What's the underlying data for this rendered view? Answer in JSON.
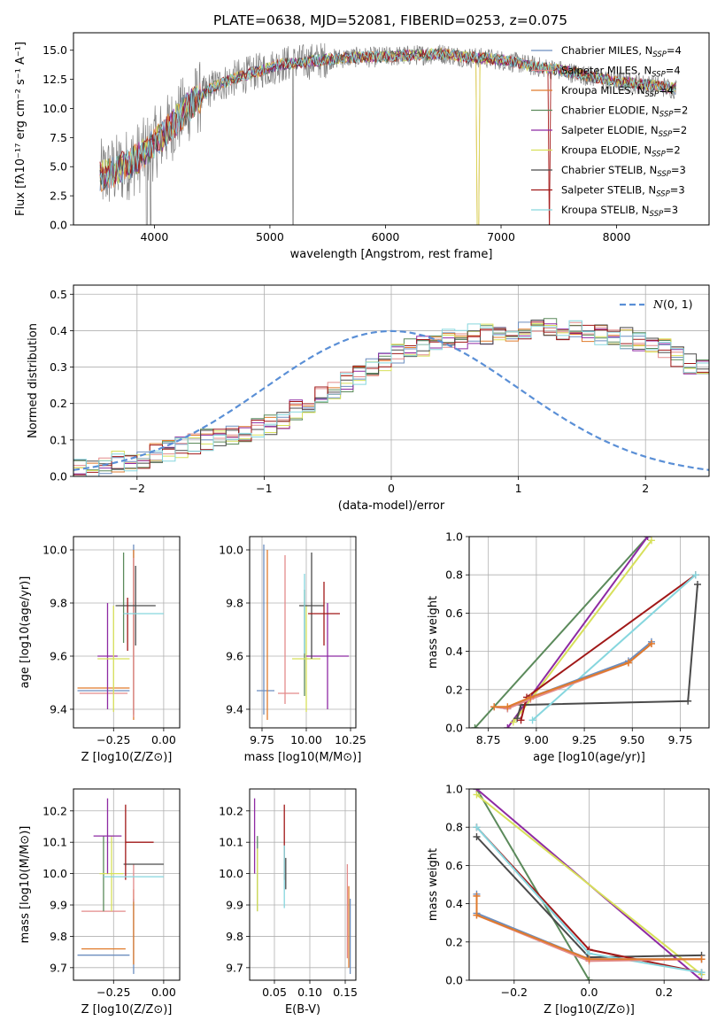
{
  "figure_title": "PLATE=0638, MJD=52081, FIBERID=0253, z=0.075",
  "colors": {
    "chabrier_miles": "#6c8ebf",
    "salpeter_miles": "#e38b8b",
    "kroupa_miles": "#e07b2c",
    "chabrier_elodie": "#5b8a5b",
    "salpeter_elodie": "#8e2aa3",
    "kroupa_elodie": "#d7e05a",
    "chabrier_stelib": "#4a4a4a",
    "salpeter_stelib": "#a01818",
    "kroupa_stelib": "#86d6de",
    "gaussian": "#5a8fd6",
    "grid": "#b0b0b0"
  },
  "chart_data": [
    {
      "type": "line",
      "id": "spectrum",
      "title": "PLATE=0638, MJD=52081, FIBERID=0253, z=0.075",
      "xlabel": "wavelength [Angstrom, rest frame]",
      "ylabel": "Flux [fλ10⁻¹⁷ erg cm⁻² s⁻¹ A⁻¹]",
      "xlim": [
        3300,
        8800
      ],
      "ylim": [
        0,
        16.5
      ],
      "xticks": [
        "4000",
        "5000",
        "6000",
        "7000",
        "8000"
      ],
      "yticks": [
        "0.0",
        "2.5",
        "5.0",
        "7.5",
        "10.0",
        "12.5",
        "15.0"
      ],
      "grid": false,
      "legend_position": "upper-right",
      "continuum_x": [
        3530,
        3700,
        3900,
        4100,
        4300,
        4500,
        4700,
        4900,
        5100,
        5300,
        5500,
        5700,
        5900,
        6100,
        6300,
        6500,
        6700,
        6900,
        7100,
        7300,
        7500,
        7700,
        7900,
        8100,
        8300,
        8500
      ],
      "continuum_y": [
        4.2,
        4.8,
        6.0,
        8.0,
        10.2,
        11.8,
        12.6,
        13.2,
        13.8,
        14.0,
        14.2,
        14.4,
        14.4,
        14.5,
        14.6,
        14.7,
        14.4,
        14.3,
        14.0,
        13.6,
        13.3,
        12.9,
        12.5,
        12.2,
        12.0,
        11.7
      ],
      "series": [
        {
          "name": "Chabrier MILES, N_SSP=4",
          "legend_label": "Chabrier MILES, N",
          "legend_sub": "SSP",
          "legend_val": "=4",
          "color_key": "chabrier_miles"
        },
        {
          "name": "Salpeter MILES, N_SSP=4",
          "legend_label": "Salpeter MILES, N",
          "legend_sub": "SSP",
          "legend_val": "=4",
          "color_key": "salpeter_miles"
        },
        {
          "name": "Kroupa MILES, N_SSP=4",
          "legend_label": "Kroupa MILES, N",
          "legend_sub": "SSP",
          "legend_val": "=4",
          "color_key": "kroupa_miles"
        },
        {
          "name": "Chabrier ELODIE, N_SSP=2",
          "legend_label": "Chabrier ELODIE, N",
          "legend_sub": "SSP",
          "legend_val": "=2",
          "color_key": "chabrier_elodie"
        },
        {
          "name": "Salpeter ELODIE, N_SSP=2",
          "legend_label": "Salpeter ELODIE, N",
          "legend_sub": "SSP",
          "legend_val": "=2",
          "color_key": "salpeter_elodie"
        },
        {
          "name": "Kroupa ELODIE, N_SSP=2",
          "legend_label": "Kroupa ELODIE, N",
          "legend_sub": "SSP",
          "legend_val": "=2",
          "color_key": "kroupa_elodie"
        },
        {
          "name": "Chabrier STELIB, N_SSP=3",
          "legend_label": "Chabrier STELIB, N",
          "legend_sub": "SSP",
          "legend_val": "=3",
          "color_key": "chabrier_stelib"
        },
        {
          "name": "Salpeter STELIB, N_SSP=3",
          "legend_label": "Salpeter STELIB, N",
          "legend_sub": "SSP",
          "legend_val": "=3",
          "color_key": "salpeter_stelib"
        },
        {
          "name": "Kroupa STELIB, N_SSP=3",
          "legend_label": "Kroupa STELIB, N",
          "legend_sub": "SSP",
          "legend_val": "=3",
          "color_key": "kroupa_stelib"
        }
      ]
    },
    {
      "type": "histogram",
      "id": "residuals",
      "xlabel": "(data-model)/error",
      "ylabel": "Normed distribution",
      "xlim": [
        -2.5,
        2.5
      ],
      "ylim": [
        0,
        0.525
      ],
      "xticks": [
        "−2",
        "−1",
        "0",
        "1",
        "2"
      ],
      "yticks": [
        "0.0",
        "0.1",
        "0.2",
        "0.3",
        "0.4",
        "0.5"
      ],
      "grid": true,
      "legend_position": "upper-right",
      "gaussian_label": "N(0,1)",
      "gaussian_label_text": "(0, 1)",
      "bin_start": -2.5,
      "bin_width": 0.1,
      "bin_values": [
        0.02,
        0.02,
        0.03,
        0.04,
        0.04,
        0.05,
        0.06,
        0.07,
        0.08,
        0.09,
        0.1,
        0.1,
        0.11,
        0.12,
        0.13,
        0.14,
        0.16,
        0.18,
        0.2,
        0.22,
        0.24,
        0.26,
        0.28,
        0.3,
        0.32,
        0.34,
        0.35,
        0.36,
        0.37,
        0.38,
        0.38,
        0.39,
        0.39,
        0.4,
        0.4,
        0.4,
        0.4,
        0.41,
        0.4,
        0.4,
        0.4,
        0.39,
        0.38,
        0.38,
        0.37,
        0.36,
        0.35,
        0.33,
        0.31,
        0.29,
        0.27,
        0.25,
        0.23,
        0.21,
        0.19,
        0.17,
        0.15,
        0.13,
        0.12,
        0.1,
        0.09,
        0.08,
        0.07,
        0.06,
        0.05,
        0.04,
        0.04,
        0.03,
        0.03,
        0.02,
        0.02
      ]
    },
    {
      "type": "scatter",
      "id": "z_vs_age",
      "xlabel": "Z [log10(Z/Z⊙)]",
      "ylabel": "age  [log10(age/yr)]",
      "xlim": [
        -0.45,
        0.08
      ],
      "ylim": [
        9.33,
        10.05
      ],
      "xticks": [
        "−0.25",
        "0.00"
      ],
      "yticks": [
        "9.4",
        "9.6",
        "9.8",
        "10.0"
      ],
      "grid": true,
      "points": [
        {
          "series": 0,
          "x": -0.3,
          "xerr": 0.13,
          "y": 9.47,
          "yerr": 0.0
        },
        {
          "series": 1,
          "x": -0.3,
          "xerr": 0.12,
          "y": 9.46,
          "yerr": 0.0
        },
        {
          "series": 2,
          "x": -0.3,
          "xerr": 0.13,
          "y": 9.48,
          "yerr": 0.0
        },
        {
          "series": 0,
          "x": -0.15,
          "xerr": 0.0,
          "y": 9.7,
          "yerr": 0.32
        },
        {
          "series": 2,
          "x": -0.15,
          "xerr": 0.0,
          "y": 9.68,
          "yerr": 0.32
        },
        {
          "series": 1,
          "x": -0.15,
          "xerr": 0.0,
          "y": 9.67,
          "yerr": 0.3
        },
        {
          "series": 3,
          "x": -0.2,
          "xerr": 0.0,
          "y": 9.82,
          "yerr": 0.17
        },
        {
          "series": 4,
          "x": -0.28,
          "xerr": 0.05,
          "y": 9.6,
          "yerr": 0.2
        },
        {
          "series": 5,
          "x": -0.25,
          "xerr": 0.08,
          "y": 9.59,
          "yerr": 0.2
        },
        {
          "series": 6,
          "x": -0.14,
          "xerr": 0.1,
          "y": 9.79,
          "yerr": 0.15
        },
        {
          "series": 7,
          "x": -0.18,
          "xerr": 0.0,
          "y": 9.72,
          "yerr": 0.1
        },
        {
          "series": 8,
          "x": -0.1,
          "xerr": 0.1,
          "y": 9.76,
          "yerr": 0.0
        }
      ]
    },
    {
      "type": "scatter",
      "id": "mass_vs_age",
      "xlabel": "mass [log10(M/M⊙)]",
      "ylabel": "",
      "xlim": [
        9.68,
        10.28
      ],
      "ylim": [
        9.33,
        10.05
      ],
      "xticks": [
        "9.75",
        "10.00",
        "10.25"
      ],
      "yticks": [
        "9.4",
        "9.6",
        "9.8",
        "10.0"
      ],
      "grid": true,
      "points": [
        {
          "series": 0,
          "x": 9.77,
          "xerr": 0.05,
          "y": 9.47,
          "yerr": 0.0
        },
        {
          "series": 0,
          "x": 9.76,
          "xerr": 0.0,
          "y": 9.7,
          "yerr": 0.32
        },
        {
          "series": 2,
          "x": 9.78,
          "xerr": 0.0,
          "y": 9.68,
          "yerr": 0.32
        },
        {
          "series": 1,
          "x": 9.88,
          "xerr": 0.0,
          "y": 9.7,
          "yerr": 0.28
        },
        {
          "series": 1,
          "x": 9.9,
          "xerr": 0.06,
          "y": 9.46,
          "yerr": 0.0
        },
        {
          "series": 3,
          "x": 9.99,
          "xerr": 0.0,
          "y": 9.65,
          "yerr": 0.2
        },
        {
          "series": 5,
          "x": 10.0,
          "xerr": 0.08,
          "y": 9.59,
          "yerr": 0.2
        },
        {
          "series": 4,
          "x": 10.12,
          "xerr": 0.12,
          "y": 9.6,
          "yerr": 0.2
        },
        {
          "series": 6,
          "x": 10.03,
          "xerr": 0.07,
          "y": 9.79,
          "yerr": 0.2
        },
        {
          "series": 7,
          "x": 10.1,
          "xerr": 0.09,
          "y": 9.76,
          "yerr": 0.12
        },
        {
          "series": 8,
          "x": 9.99,
          "xerr": 0.0,
          "y": 9.76,
          "yerr": 0.15
        }
      ]
    },
    {
      "type": "line",
      "id": "age_vs_massweight",
      "xlabel": "age  [log10(age/yr)]",
      "ylabel": "mass weight",
      "xlim": [
        8.65,
        9.9
      ],
      "ylim": [
        0,
        1
      ],
      "xticks": [
        "8.75",
        "9.00",
        "9.25",
        "9.50",
        "9.75"
      ],
      "yticks": [
        "0.0",
        "0.2",
        "0.4",
        "0.6",
        "0.8",
        "1.0"
      ],
      "grid": true,
      "series": [
        {
          "series": 3,
          "x": [
            8.68,
            9.58
          ],
          "y": [
            0.0,
            1.0
          ]
        },
        {
          "series": 4,
          "x": [
            8.85,
            9.58
          ],
          "y": [
            0.0,
            1.0
          ]
        },
        {
          "series": 5,
          "x": [
            8.88,
            9.6
          ],
          "y": [
            0.03,
            0.98
          ]
        },
        {
          "series": 6,
          "x": [
            8.9,
            8.92,
            9.79,
            9.84
          ],
          "y": [
            0.05,
            0.12,
            0.14,
            0.75
          ]
        },
        {
          "series": 7,
          "x": [
            8.92,
            8.95,
            9.83
          ],
          "y": [
            0.04,
            0.16,
            0.8
          ]
        },
        {
          "series": 8,
          "x": [
            8.98,
            9.83
          ],
          "y": [
            0.04,
            0.8
          ]
        },
        {
          "series": 0,
          "x": [
            8.78,
            8.85,
            8.97,
            9.48,
            9.6
          ],
          "y": [
            0.11,
            0.1,
            0.16,
            0.35,
            0.45
          ]
        },
        {
          "series": 1,
          "x": [
            8.78,
            8.85,
            8.97,
            9.48,
            9.6
          ],
          "y": [
            0.11,
            0.1,
            0.15,
            0.34,
            0.44
          ]
        },
        {
          "series": 2,
          "x": [
            8.78,
            8.85,
            8.97,
            9.48,
            9.6
          ],
          "y": [
            0.11,
            0.11,
            0.16,
            0.34,
            0.44
          ]
        }
      ]
    },
    {
      "type": "scatter",
      "id": "z_vs_mass",
      "xlabel": "Z [log10(Z/Z⊙)]",
      "ylabel": "mass [log10(M/M⊙)]",
      "xlim": [
        -0.45,
        0.08
      ],
      "ylim": [
        9.66,
        10.27
      ],
      "xticks": [
        "−0.25",
        "0.00"
      ],
      "yticks": [
        "9.7",
        "9.8",
        "9.9",
        "10.0",
        "10.1",
        "10.2"
      ],
      "grid": true,
      "points": [
        {
          "series": 0,
          "x": -0.3,
          "xerr": 0.13,
          "y": 9.74,
          "yerr": 0.0
        },
        {
          "series": 2,
          "x": -0.3,
          "xerr": 0.11,
          "y": 9.76,
          "yerr": 0.0
        },
        {
          "series": 1,
          "x": -0.3,
          "xerr": 0.11,
          "y": 9.88,
          "yerr": 0.0
        },
        {
          "series": 0,
          "x": -0.15,
          "xerr": 0.0,
          "y": 9.8,
          "yerr": 0.12
        },
        {
          "series": 2,
          "x": -0.15,
          "xerr": 0.0,
          "y": 9.83,
          "yerr": 0.12
        },
        {
          "series": 1,
          "x": -0.15,
          "xerr": 0.0,
          "y": 9.97,
          "yerr": 0.06
        },
        {
          "series": 3,
          "x": -0.3,
          "xerr": 0.0,
          "y": 10.0,
          "yerr": 0.12
        },
        {
          "series": 5,
          "x": -0.26,
          "xerr": 0.06,
          "y": 10.0,
          "yerr": 0.12
        },
        {
          "series": 4,
          "x": -0.28,
          "xerr": 0.07,
          "y": 10.12,
          "yerr": 0.12
        },
        {
          "series": 6,
          "x": -0.1,
          "xerr": 0.1,
          "y": 10.03,
          "yerr": 0.0
        },
        {
          "series": 7,
          "x": -0.19,
          "xerr": 0.0,
          "y": 10.1,
          "yerr": 0.12
        },
        {
          "series": 7,
          "x": -0.12,
          "xerr": 0.07,
          "y": 10.1,
          "yerr": 0.0
        },
        {
          "series": 8,
          "x": -0.15,
          "xerr": 0.15,
          "y": 9.99,
          "yerr": 0.0
        }
      ]
    },
    {
      "type": "scatter",
      "id": "ebv_vs_mass",
      "xlabel": "E(B-V)",
      "ylabel": "",
      "xlim": [
        0.015,
        0.165
      ],
      "ylim": [
        9.66,
        10.27
      ],
      "xticks": [
        "0.05",
        "0.10",
        "0.15"
      ],
      "yticks": [
        "9.7",
        "9.8",
        "9.9",
        "10.0",
        "10.1",
        "10.2"
      ],
      "grid": true,
      "points": [
        {
          "series": 4,
          "x": 0.022,
          "xerr": 0.0,
          "y": 10.12,
          "yerr": 0.12
        },
        {
          "series": 3,
          "x": 0.026,
          "xerr": 0.0,
          "y": 10.0,
          "yerr": 0.12
        },
        {
          "series": 5,
          "x": 0.026,
          "xerr": 0.0,
          "y": 9.98,
          "yerr": 0.1
        },
        {
          "series": 7,
          "x": 0.064,
          "xerr": 0.0,
          "y": 10.1,
          "yerr": 0.12
        },
        {
          "series": 8,
          "x": 0.064,
          "xerr": 0.0,
          "y": 9.99,
          "yerr": 0.1
        },
        {
          "series": 6,
          "x": 0.066,
          "xerr": 0.0,
          "y": 10.0,
          "yerr": 0.05
        },
        {
          "series": 1,
          "x": 0.153,
          "xerr": 0.0,
          "y": 9.88,
          "yerr": 0.15
        },
        {
          "series": 2,
          "x": 0.155,
          "xerr": 0.0,
          "y": 9.83,
          "yerr": 0.13
        },
        {
          "series": 0,
          "x": 0.157,
          "xerr": 0.0,
          "y": 9.8,
          "yerr": 0.12
        }
      ]
    },
    {
      "type": "line",
      "id": "z_vs_massweight",
      "xlabel": "Z [log10(Z/Z⊙)]",
      "ylabel": "mass weight",
      "xlim": [
        -0.32,
        0.32
      ],
      "ylim": [
        0,
        1
      ],
      "xticks": [
        "−0.2",
        "0.0",
        "0.2"
      ],
      "yticks": [
        "0.0",
        "0.2",
        "0.4",
        "0.6",
        "0.8",
        "1.0"
      ],
      "grid": true,
      "series": [
        {
          "series": 3,
          "x": [
            -0.3,
            0.0
          ],
          "y": [
            1.0,
            0.0
          ]
        },
        {
          "series": 4,
          "x": [
            -0.3,
            0.3
          ],
          "y": [
            1.0,
            0.0
          ]
        },
        {
          "series": 5,
          "x": [
            -0.3,
            0.3
          ],
          "y": [
            0.97,
            0.03
          ]
        },
        {
          "series": 6,
          "x": [
            -0.3,
            0.0,
            0.3
          ],
          "y": [
            0.75,
            0.12,
            0.13
          ]
        },
        {
          "series": 7,
          "x": [
            -0.3,
            0.0,
            0.3
          ],
          "y": [
            0.8,
            0.16,
            0.04
          ]
        },
        {
          "series": 8,
          "x": [
            -0.3,
            0.0,
            0.3
          ],
          "y": [
            0.8,
            0.14,
            0.04
          ]
        },
        {
          "series": 0,
          "x": [
            -0.3,
            -0.3,
            0.0,
            0.3
          ],
          "y": [
            0.45,
            0.35,
            0.11,
            0.11
          ]
        },
        {
          "series": 1,
          "x": [
            -0.3,
            -0.3,
            0.0,
            0.3
          ],
          "y": [
            0.44,
            0.34,
            0.1,
            0.11
          ]
        },
        {
          "series": 2,
          "x": [
            -0.3,
            -0.3,
            0.0,
            0.3
          ],
          "y": [
            0.44,
            0.34,
            0.11,
            0.11
          ]
        }
      ]
    }
  ]
}
